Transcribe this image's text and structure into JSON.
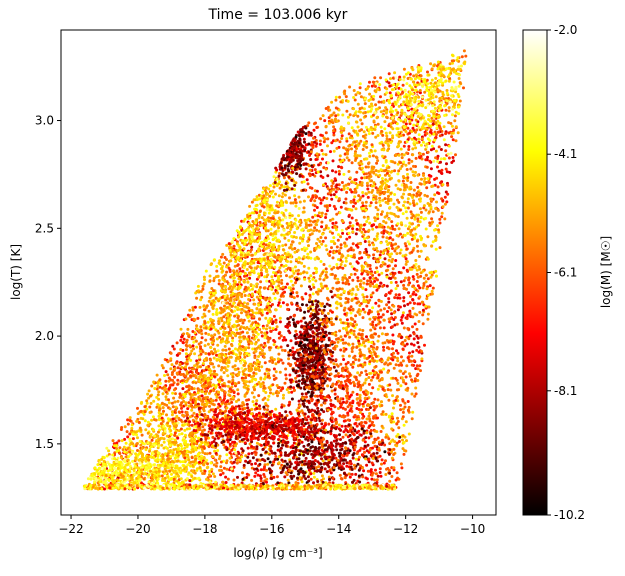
{
  "chart_data": {
    "type": "scatter",
    "title": "Time = 103.006 kyr",
    "xlabel": "log(ρ) [g cm⁻³]",
    "ylabel": "log(T) [K]",
    "xlim": [
      -22.3,
      -9.3
    ],
    "ylim": [
      1.17,
      3.42
    ],
    "xticks": [
      -22,
      -20,
      -18,
      -16,
      -14,
      -12,
      -10
    ],
    "yticks": [
      1.5,
      2.0,
      2.5,
      3.0
    ],
    "xtick_labels": [
      "−22",
      "−20",
      "−18",
      "−16",
      "−14",
      "−12",
      "−10"
    ],
    "ytick_labels": [
      "1.5",
      "2.0",
      "2.5",
      "3.0"
    ],
    "grid": false,
    "colormap": "hot",
    "colorbar": {
      "label": "log(M) [M☉]",
      "range": [
        -10.2,
        -2.0
      ],
      "ticks": [
        -2.0,
        -4.1,
        -6.1,
        -8.1,
        -10.2
      ],
      "tick_labels": [
        "-2.0",
        "-4.1",
        "-6.1",
        "-8.1",
        "-10.2"
      ],
      "colors": [
        "#000000",
        "#550000",
        "#aa0000",
        "#ff0000",
        "#ff5500",
        "#ffaa00",
        "#ffff00",
        "#ffff80",
        "#ffffff"
      ]
    },
    "envelope": {
      "description_points_logrho_logT": [
        [
          -21.7,
          1.29
        ],
        [
          -21.3,
          1.4
        ],
        [
          -20.5,
          1.58
        ],
        [
          -19.8,
          1.72
        ],
        [
          -19.0,
          1.95
        ],
        [
          -18.3,
          2.2
        ],
        [
          -17.8,
          2.35
        ],
        [
          -17.2,
          2.45
        ],
        [
          -16.6,
          2.62
        ],
        [
          -15.8,
          2.8
        ],
        [
          -15.2,
          2.95
        ],
        [
          -14.6,
          3.03
        ],
        [
          -13.8,
          3.15
        ],
        [
          -12.6,
          3.22
        ],
        [
          -11.2,
          3.27
        ],
        [
          -10.15,
          3.33
        ],
        [
          -10.4,
          2.95
        ],
        [
          -11.0,
          2.35
        ],
        [
          -11.7,
          1.7
        ],
        [
          -12.2,
          1.29
        ]
      ]
    },
    "clusters": [
      {
        "x": -20.5,
        "y": 1.36,
        "value": -4.0,
        "sx": 0.8,
        "sy": 0.05
      },
      {
        "x": -19.0,
        "y": 1.45,
        "value": -4.5,
        "sx": 0.8,
        "sy": 0.1
      },
      {
        "x": -18.0,
        "y": 1.75,
        "value": -5.5,
        "sx": 0.7,
        "sy": 0.15
      },
      {
        "x": -17.0,
        "y": 2.1,
        "value": -5.0,
        "sx": 0.6,
        "sy": 0.2
      },
      {
        "x": -16.2,
        "y": 2.45,
        "value": -4.5,
        "sx": 0.6,
        "sy": 0.15
      },
      {
        "x": -15.5,
        "y": 2.9,
        "value": -8.5,
        "sx": 0.3,
        "sy": 0.08
      },
      {
        "x": -14.8,
        "y": 1.92,
        "value": -8.8,
        "sx": 0.3,
        "sy": 0.12
      },
      {
        "x": -14.8,
        "y": 1.45,
        "value": -8.5,
        "sx": 1.1,
        "sy": 0.08
      },
      {
        "x": -13.0,
        "y": 2.6,
        "value": -5.0,
        "sx": 1.0,
        "sy": 0.25
      },
      {
        "x": -11.5,
        "y": 3.1,
        "value": -4.2,
        "sx": 0.8,
        "sy": 0.12
      },
      {
        "x": -13.5,
        "y": 1.8,
        "value": -6.0,
        "sx": 0.9,
        "sy": 0.25
      },
      {
        "x": -16.3,
        "y": 1.58,
        "value": -7.5,
        "sx": 0.9,
        "sy": 0.04
      }
    ]
  }
}
